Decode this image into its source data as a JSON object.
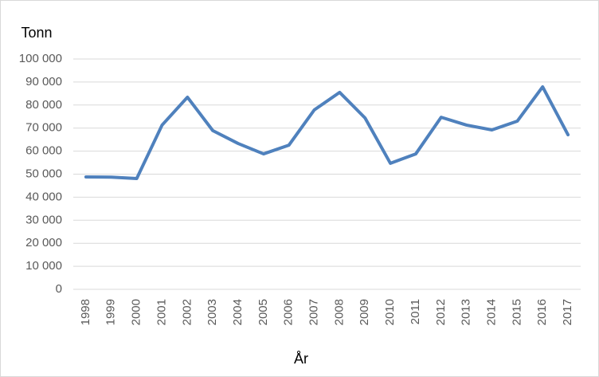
{
  "chart_data": {
    "type": "line",
    "y_label": "Tonn",
    "x_label": "År",
    "categories": [
      "1998",
      "1999",
      "2000",
      "2001",
      "2002",
      "2003",
      "2004",
      "2005",
      "2006",
      "2007",
      "2008",
      "2009",
      "2010",
      "2011",
      "2012",
      "2013",
      "2014",
      "2015",
      "2016",
      "2017"
    ],
    "values": [
      48800,
      48700,
      48100,
      71300,
      83400,
      68900,
      63300,
      58800,
      62600,
      77900,
      85500,
      74400,
      54700,
      58800,
      74700,
      71300,
      69200,
      73000,
      87900,
      67100
    ],
    "color": "#4f81bd",
    "ylim": [
      0,
      100000
    ],
    "yticks": [
      0,
      {
        "value": 10000,
        "label": "10 000"
      },
      {
        "value": 20000,
        "label": "20 000"
      },
      {
        "value": 30000,
        "label": "30 000"
      },
      {
        "value": 40000,
        "label": "40 000"
      },
      {
        "value": 50000,
        "label": "50 000"
      },
      {
        "value": 60000,
        "label": "60 000"
      },
      {
        "value": 70000,
        "label": "70 000"
      },
      {
        "value": 80000,
        "label": "80 000"
      },
      {
        "value": 90000,
        "label": "90 000"
      },
      {
        "value": 100000,
        "label": "100 000"
      }
    ],
    "grid": true
  }
}
